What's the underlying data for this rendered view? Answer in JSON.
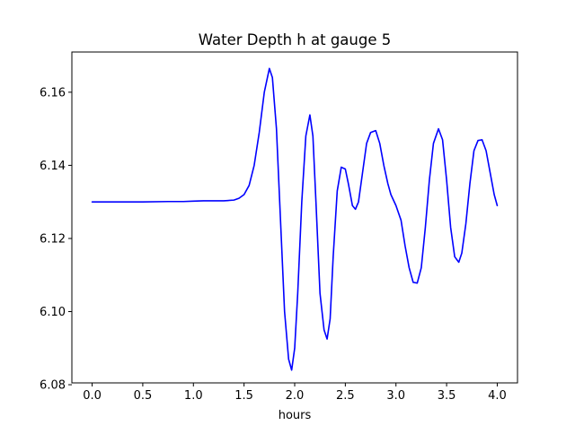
{
  "chart_data": {
    "type": "line",
    "title": "Water Depth h at gauge 5",
    "xlabel": "hours",
    "ylabel": "",
    "xlim": [
      -0.2,
      4.2
    ],
    "ylim": [
      6.0805,
      6.171
    ],
    "xticks": [
      0.0,
      0.5,
      1.0,
      1.5,
      2.0,
      2.5,
      3.0,
      3.5,
      4.0
    ],
    "xtick_labels": [
      "0.0",
      "0.5",
      "1.0",
      "1.5",
      "2.0",
      "2.5",
      "3.0",
      "3.5",
      "4.0"
    ],
    "yticks": [
      6.08,
      6.1,
      6.12,
      6.14,
      6.16
    ],
    "ytick_labels": [
      "6.08",
      "6.10",
      "6.12",
      "6.14",
      "6.16"
    ],
    "grid": false,
    "series": [
      {
        "color": "#0000ff",
        "x": [
          0.0,
          0.25,
          0.5,
          0.75,
          0.9,
          1.0,
          1.1,
          1.2,
          1.3,
          1.4,
          1.45,
          1.5,
          1.55,
          1.6,
          1.65,
          1.7,
          1.75,
          1.78,
          1.82,
          1.86,
          1.9,
          1.94,
          1.97,
          2.0,
          2.03,
          2.07,
          2.11,
          2.15,
          2.18,
          2.21,
          2.25,
          2.29,
          2.32,
          2.35,
          2.38,
          2.42,
          2.46,
          2.5,
          2.53,
          2.57,
          2.6,
          2.63,
          2.67,
          2.71,
          2.75,
          2.8,
          2.84,
          2.88,
          2.92,
          2.95,
          3.0,
          3.05,
          3.09,
          3.13,
          3.17,
          3.21,
          3.25,
          3.29,
          3.33,
          3.37,
          3.42,
          3.46,
          3.5,
          3.54,
          3.58,
          3.62,
          3.65,
          3.69,
          3.73,
          3.77,
          3.81,
          3.85,
          3.89,
          3.93,
          3.97,
          4.0
        ],
        "y": [
          6.13,
          6.13,
          6.13,
          6.1301,
          6.1301,
          6.1302,
          6.1303,
          6.1303,
          6.1303,
          6.1305,
          6.131,
          6.132,
          6.1345,
          6.14,
          6.149,
          6.16,
          6.1665,
          6.164,
          6.15,
          6.125,
          6.1,
          6.087,
          6.084,
          6.09,
          6.105,
          6.13,
          6.148,
          6.1538,
          6.148,
          6.13,
          6.105,
          6.095,
          6.0925,
          6.098,
          6.115,
          6.133,
          6.1395,
          6.139,
          6.135,
          6.129,
          6.128,
          6.13,
          6.138,
          6.146,
          6.149,
          6.1495,
          6.146,
          6.14,
          6.135,
          6.132,
          6.129,
          6.125,
          6.118,
          6.112,
          6.108,
          6.1078,
          6.112,
          6.123,
          6.136,
          6.146,
          6.15,
          6.147,
          6.136,
          6.123,
          6.115,
          6.1135,
          6.116,
          6.124,
          6.135,
          6.144,
          6.1468,
          6.147,
          6.144,
          6.138,
          6.132,
          6.129
        ]
      }
    ]
  }
}
